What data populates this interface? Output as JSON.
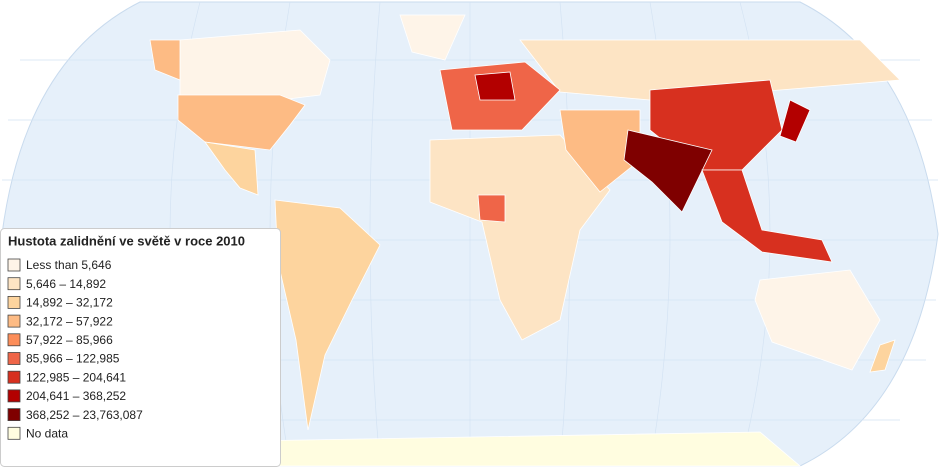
{
  "legend": {
    "title": "Hustota zalidnění ve světě v roce 2010",
    "items": [
      {
        "label": "Less than 5,646",
        "color": "#fef4e8"
      },
      {
        "label": "5,646 – 14,892",
        "color": "#fde4c4"
      },
      {
        "label": "14,892 – 32,172",
        "color": "#fdd49e"
      },
      {
        "label": "32,172 – 57,922",
        "color": "#fdbb84"
      },
      {
        "label": "57,922 – 85,966",
        "color": "#fc8d59"
      },
      {
        "label": "85,966 – 122,985",
        "color": "#ef6548"
      },
      {
        "label": "122,985 – 204,641",
        "color": "#d7301f"
      },
      {
        "label": "204,641 – 368,252",
        "color": "#b30000"
      },
      {
        "label": "368,252 – 23,763,087",
        "color": "#7f0000"
      },
      {
        "label": "No data",
        "color": "#fffde0"
      }
    ]
  }
}
